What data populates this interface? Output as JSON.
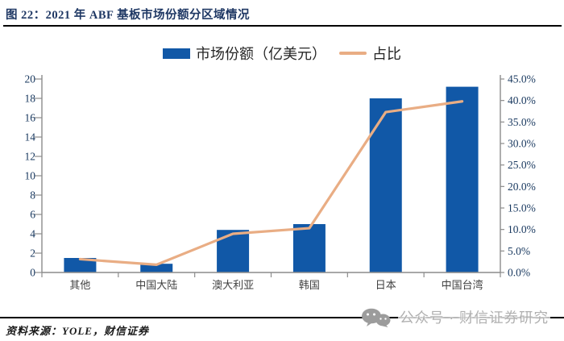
{
  "title": "图 22：2021 年 ABF 基板市场份额分区域情况",
  "legend": {
    "bar_label": "市场份额（亿美元）",
    "line_label": "占比"
  },
  "chart_data": {
    "type": "bar",
    "subtype": "bar+line combo, dual axis",
    "title": "2021 年 ABF 基板市场份额分区域情况",
    "categories": [
      "其他",
      "中国大陆",
      "澳大利亚",
      "韩国",
      "日本",
      "中国台湾"
    ],
    "series": [
      {
        "name": "市场份额（亿美元）",
        "type": "bar",
        "y_axis": "left",
        "values": [
          1.5,
          0.9,
          4.4,
          5.0,
          18.0,
          19.2
        ]
      },
      {
        "name": "占比",
        "type": "line",
        "y_axis": "right",
        "values_percent": [
          3.1,
          1.8,
          9.0,
          10.3,
          37.3,
          39.8
        ]
      }
    ],
    "left_axis": {
      "min": 0,
      "max": 20,
      "step": 2,
      "ticks": [
        "0",
        "2",
        "4",
        "6",
        "8",
        "10",
        "12",
        "14",
        "16",
        "18",
        "20"
      ]
    },
    "right_axis": {
      "min_pct": 0,
      "max_pct": 45,
      "step_pct": 5,
      "ticks": [
        "0.0%",
        "5.0%",
        "10.0%",
        "15.0%",
        "20.0%",
        "25.0%",
        "30.0%",
        "35.0%",
        "40.0%",
        "45.0%"
      ]
    },
    "legend_position": "top-center",
    "grid": false
  },
  "footer": {
    "source_label": "资料来源：YOLE，财信证券",
    "watermark_label": "公众号 · 财信证券研究",
    "watermark_icon": "wechat-icon"
  },
  "colors": {
    "bar": "#1158A7",
    "line": "#E9AD84",
    "title": "#1F3864",
    "axis": "#8C8C8C",
    "tick_text": "#17375E",
    "category_text": "#3F3F3F",
    "watermark": "#AFAFAF",
    "rule": "#000000"
  }
}
